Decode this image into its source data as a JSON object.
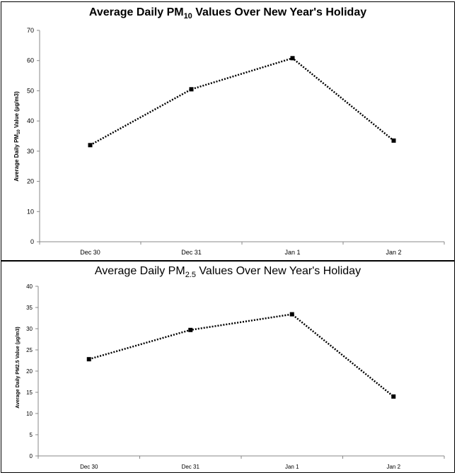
{
  "chart_data": [
    {
      "type": "line",
      "title_main": "Average Daily PM",
      "title_sub": "10",
      "title_rest": " Values Over New Year's Holiday",
      "title": "Average Daily PM10 Values Over New Year's Holiday",
      "ylabel_main": "Average Daily PM",
      "ylabel_sub": "10",
      "ylabel_rest": " Value (µg/m3)",
      "ylabel": "Average Daily PM10 Value (µg/m3)",
      "xlabel": "",
      "categories": [
        "Dec 30",
        "Dec 31",
        "Jan 1",
        "Jan 2"
      ],
      "values": [
        32,
        50.5,
        60.8,
        33.5
      ],
      "ylim": [
        0,
        70
      ],
      "yticks": [
        "0",
        "10",
        "20",
        "30",
        "40",
        "50",
        "60",
        "70"
      ],
      "grid": false,
      "line_style": "dotted",
      "marker": "square",
      "color": "#000000"
    },
    {
      "type": "line",
      "title_main": "Average Daily PM",
      "title_sub": "2.5",
      "title_rest": " Values Over New Year's Holiday",
      "title": "Average Daily PM2.5 Values Over New Year's Holiday",
      "ylabel": "Average Daily PM2.5 Value (µg/m3)",
      "xlabel": "",
      "categories": [
        "Dec 30",
        "Dec 31",
        "Jan 1",
        "Jan 2"
      ],
      "values": [
        22.8,
        29.7,
        33.4,
        14
      ],
      "ylim": [
        0,
        40
      ],
      "yticks": [
        "0",
        "5",
        "10",
        "15",
        "20",
        "25",
        "30",
        "35",
        "40"
      ],
      "grid": false,
      "line_style": "dotted",
      "marker": "square",
      "color": "#000000"
    }
  ]
}
